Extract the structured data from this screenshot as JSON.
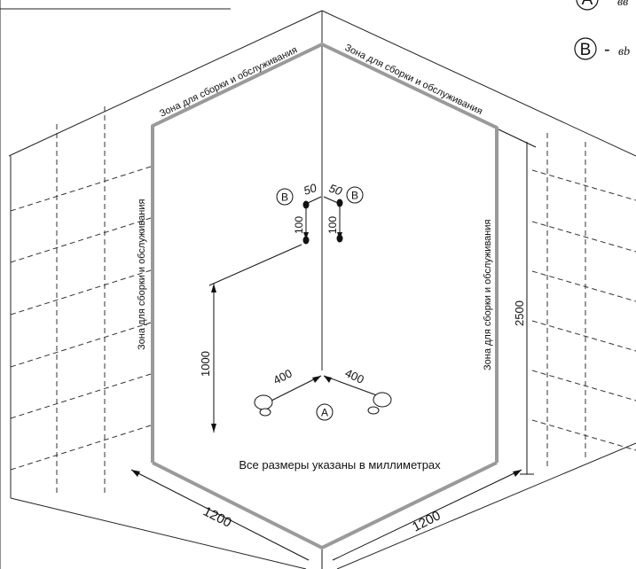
{
  "zone_labels": {
    "top_left": "Зона для сборки и обслуживания",
    "top_right": "Зона для сборки и обслуживания",
    "left": "Зона для сборки и обслуживания",
    "right": "Зона для сборки и обслуживания"
  },
  "dimensions": {
    "floor_left": "1200",
    "floor_right": "1200",
    "height_total": "2500",
    "mixer_height": "1000",
    "drain_left": "400",
    "drain_right": "400",
    "spout_left_offset": "50",
    "spout_right_offset": "50",
    "spout_left_drop": "100",
    "spout_right_drop": "100"
  },
  "markers": {
    "drain": "A",
    "spout_left": "B",
    "spout_right": "B"
  },
  "legend": {
    "item_a_letter": "A",
    "item_a_dash": "-",
    "item_a_text": "вв",
    "item_b_letter": "B",
    "item_b_dash": "-",
    "item_b_text": "вb"
  },
  "note": "Все размеры указаны в миллиметрах"
}
